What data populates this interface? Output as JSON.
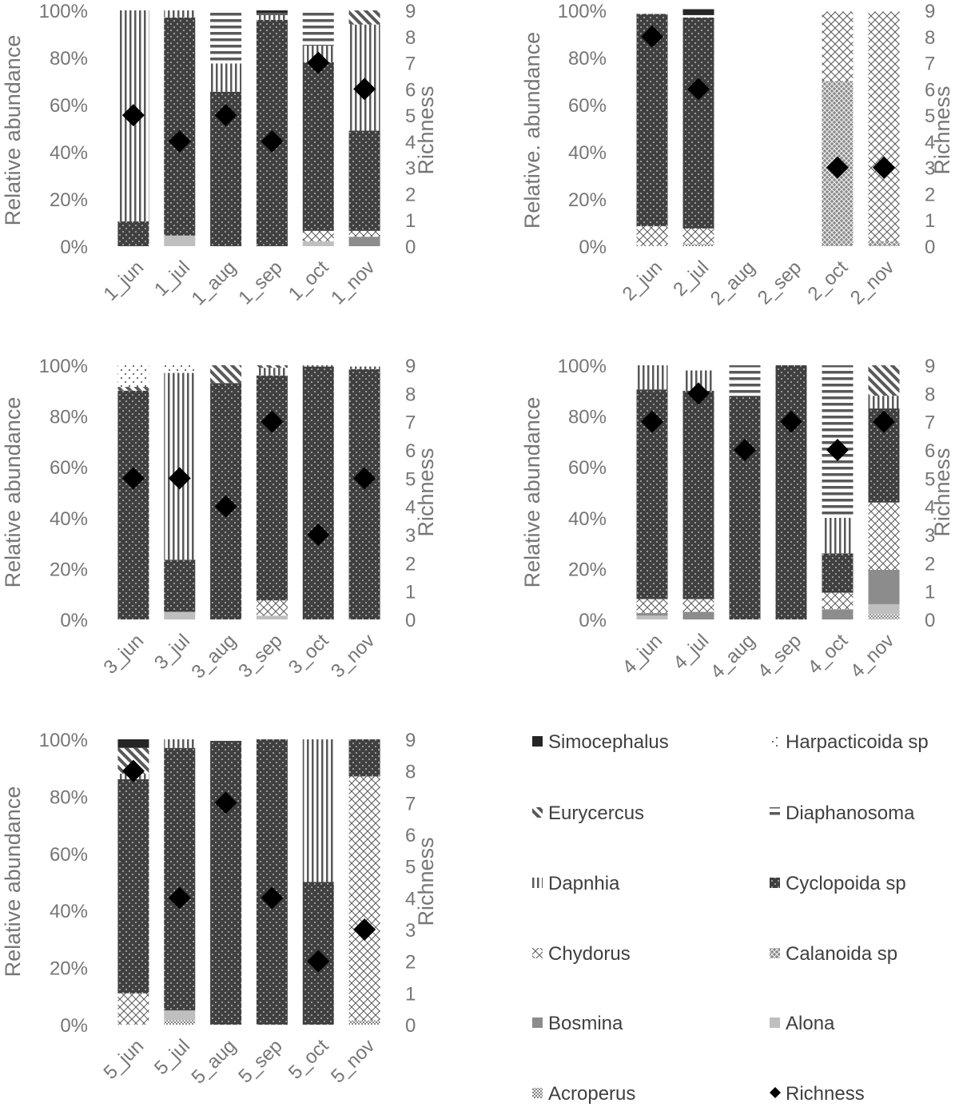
{
  "species": [
    "Acroperus",
    "Alona",
    "Bosmina",
    "Calanoida sp",
    "Chydorus",
    "Cyclopoida sp",
    "Dapnhia",
    "Diaphanosoma",
    "Eurycercus",
    "Harpacticoida sp",
    "Simocephalus"
  ],
  "colors": {
    "axis_text": "#767676",
    "dark": "#3f3f3f",
    "darkest": "#262626",
    "bosmina": "#8c8c8c",
    "alona": "#bfbfbf",
    "pattern_line": "#595959"
  },
  "chart_data": [
    {
      "type": "bar",
      "stacked": true,
      "categories": [
        "1_jun",
        "1_jul",
        "1_aug",
        "1_sep",
        "1_oct",
        "1_nov"
      ],
      "ylabel": "Relative abundance",
      "y2label": "Richness",
      "yticks": [
        "0%",
        "20%",
        "40%",
        "60%",
        "80%",
        "100%"
      ],
      "y2ticks": [
        "0",
        "1",
        "2",
        "3",
        "4",
        "5",
        "6",
        "7",
        "8",
        "9"
      ],
      "ylim": [
        0,
        100
      ],
      "y2lim": [
        0,
        9
      ],
      "series": [
        {
          "name": "Acroperus",
          "values": [
            0,
            0,
            0,
            0,
            0,
            0
          ]
        },
        {
          "name": "Alona",
          "values": [
            0,
            4.5,
            0,
            0,
            2,
            0
          ]
        },
        {
          "name": "Bosmina",
          "values": [
            0,
            0,
            0,
            0,
            0,
            4
          ]
        },
        {
          "name": "Calanoida sp",
          "values": [
            0,
            0,
            0,
            0,
            0,
            0
          ]
        },
        {
          "name": "Chydorus",
          "values": [
            0,
            0,
            0,
            0,
            4.5,
            2.5
          ]
        },
        {
          "name": "Cyclopoida sp",
          "values": [
            10.5,
            92.5,
            65.5,
            96,
            71.5,
            42.5
          ]
        },
        {
          "name": "Dapnhia",
          "values": [
            89.5,
            3,
            12,
            2,
            7,
            45
          ]
        },
        {
          "name": "Diaphanosoma",
          "values": [
            0,
            0,
            22.5,
            1,
            15,
            0
          ]
        },
        {
          "name": "Eurycercus",
          "values": [
            0,
            0,
            0,
            0,
            0,
            6
          ]
        },
        {
          "name": "Harpacticoida sp",
          "values": [
            0,
            0,
            0,
            0,
            0,
            0
          ]
        },
        {
          "name": "Simocephalus",
          "values": [
            0,
            0,
            0,
            1,
            0,
            0
          ]
        }
      ],
      "richness": [
        5,
        4,
        5,
        4,
        7,
        6
      ]
    },
    {
      "type": "bar",
      "stacked": true,
      "categories": [
        "2_jun",
        "2_jul",
        "2_aug",
        "2_sep",
        "2_oct",
        "2_nov"
      ],
      "ylabel": "Relative. abundance",
      "y2label": "Richness",
      "yticks": [
        "0%",
        "20%",
        "40%",
        "60%",
        "80%",
        "100%"
      ],
      "y2ticks": [
        "0",
        "1",
        "2",
        "3",
        "4",
        "5",
        "6",
        "7",
        "8",
        "9"
      ],
      "ylim": [
        0,
        100
      ],
      "y2lim": [
        0,
        9
      ],
      "series": [
        {
          "name": "Acroperus",
          "values": [
            0,
            1,
            0,
            0,
            0,
            0
          ]
        },
        {
          "name": "Alona",
          "values": [
            0,
            0,
            0,
            0,
            0,
            0
          ]
        },
        {
          "name": "Bosmina",
          "values": [
            0,
            0,
            0,
            0,
            0,
            0
          ]
        },
        {
          "name": "Calanoida sp",
          "values": [
            0,
            0,
            0,
            0,
            70,
            2
          ]
        },
        {
          "name": "Chydorus",
          "values": [
            8.5,
            6.5,
            0,
            0,
            29.5,
            97.5
          ]
        },
        {
          "name": "Cyclopoida sp",
          "values": [
            90,
            89.5,
            0,
            0,
            0,
            0
          ]
        },
        {
          "name": "Dapnhia",
          "values": [
            0,
            0,
            0,
            0,
            0,
            0
          ]
        },
        {
          "name": "Diaphanosoma",
          "values": [
            0,
            0,
            0,
            0,
            0,
            0
          ]
        },
        {
          "name": "Eurycercus",
          "values": [
            0,
            0,
            0,
            0,
            0,
            0
          ]
        },
        {
          "name": "Harpacticoida sp",
          "values": [
            1,
            1,
            0,
            0,
            0,
            0
          ]
        },
        {
          "name": "Simocephalus",
          "values": [
            0,
            2.5,
            0,
            0,
            0,
            0
          ]
        }
      ],
      "richness": [
        8,
        6,
        null,
        null,
        3,
        3
      ]
    },
    {
      "type": "bar",
      "stacked": true,
      "categories": [
        "3_jun",
        "3_jul",
        "3_aug",
        "3_sep",
        "3_oct",
        "3_nov"
      ],
      "ylabel": "Relative abundance",
      "y2label": "Richness",
      "yticks": [
        "0%",
        "20%",
        "40%",
        "60%",
        "80%",
        "100%"
      ],
      "y2ticks": [
        "0",
        "1",
        "2",
        "3",
        "4",
        "5",
        "6",
        "7",
        "8",
        "9"
      ],
      "ylim": [
        0,
        100
      ],
      "y2lim": [
        0,
        9
      ],
      "series": [
        {
          "name": "Acroperus",
          "values": [
            0,
            0,
            0,
            0,
            0,
            0
          ]
        },
        {
          "name": "Alona",
          "values": [
            0,
            3,
            0,
            1.5,
            0,
            0
          ]
        },
        {
          "name": "Bosmina",
          "values": [
            0,
            0,
            0,
            0,
            0,
            0
          ]
        },
        {
          "name": "Calanoida sp",
          "values": [
            0,
            0,
            0,
            0,
            0,
            0
          ]
        },
        {
          "name": "Chydorus",
          "values": [
            0,
            0,
            0,
            6,
            0,
            0
          ]
        },
        {
          "name": "Cyclopoida sp",
          "values": [
            90,
            20.5,
            93,
            88.5,
            99.5,
            98.5
          ]
        },
        {
          "name": "Dapnhia",
          "values": [
            0,
            73.5,
            0,
            3,
            0.5,
            1
          ]
        },
        {
          "name": "Diaphanosoma",
          "values": [
            0,
            0,
            0,
            0,
            0,
            0
          ]
        },
        {
          "name": "Eurycercus",
          "values": [
            1.5,
            0,
            7,
            1,
            0,
            0
          ]
        },
        {
          "name": "Harpacticoida sp",
          "values": [
            8.5,
            3,
            0,
            0,
            0,
            0
          ]
        },
        {
          "name": "Simocephalus",
          "values": [
            0,
            0,
            0,
            0,
            0,
            0
          ]
        }
      ],
      "richness": [
        5,
        5,
        4,
        7,
        3,
        5
      ]
    },
    {
      "type": "bar",
      "stacked": true,
      "categories": [
        "4_jun",
        "4_jul",
        "4_aug",
        "4_sep",
        "4_oct",
        "4_nov"
      ],
      "ylabel": "Relative abundance",
      "y2label": "Richness",
      "yticks": [
        "0%",
        "20%",
        "40%",
        "60%",
        "80%",
        "100%"
      ],
      "y2ticks": [
        "0",
        "1",
        "2",
        "3",
        "4",
        "5",
        "6",
        "7",
        "8",
        "9"
      ],
      "ylim": [
        0,
        100
      ],
      "y2lim": [
        0,
        9
      ],
      "series": [
        {
          "name": "Acroperus",
          "values": [
            0,
            0,
            0,
            0,
            0,
            2
          ]
        },
        {
          "name": "Alona",
          "values": [
            1.5,
            0,
            0,
            0,
            0,
            4
          ]
        },
        {
          "name": "Bosmina",
          "values": [
            1,
            3,
            0,
            0,
            4,
            13.5
          ]
        },
        {
          "name": "Calanoida sp",
          "values": [
            0,
            0,
            0,
            0,
            0,
            0
          ]
        },
        {
          "name": "Chydorus",
          "values": [
            5.5,
            5,
            0,
            0,
            6.5,
            26.5
          ]
        },
        {
          "name": "Cyclopoida sp",
          "values": [
            82.5,
            82,
            88,
            100,
            15.5,
            37
          ]
        },
        {
          "name": "Dapnhia",
          "values": [
            9.5,
            8,
            0,
            0,
            14,
            5
          ]
        },
        {
          "name": "Diaphanosoma",
          "values": [
            0,
            1,
            12,
            0,
            60,
            0
          ]
        },
        {
          "name": "Eurycercus",
          "values": [
            0,
            0,
            0,
            0,
            0,
            12
          ]
        },
        {
          "name": "Harpacticoida sp",
          "values": [
            0,
            0,
            0,
            0,
            0,
            0
          ]
        },
        {
          "name": "Simocephalus",
          "values": [
            0,
            0,
            0,
            0,
            0,
            0
          ]
        }
      ],
      "richness": [
        7,
        8,
        6,
        7,
        6,
        7
      ]
    },
    {
      "type": "bar",
      "stacked": true,
      "categories": [
        "5_jun",
        "5_jul",
        "5_aug",
        "5_sep",
        "5_oct",
        "5_nov"
      ],
      "ylabel": "Relative abundance",
      "y2label": "Richness",
      "yticks": [
        "0%",
        "20%",
        "40%",
        "60%",
        "80%",
        "100%"
      ],
      "y2ticks": [
        "0",
        "1",
        "2",
        "3",
        "4",
        "5",
        "6",
        "7",
        "8",
        "9"
      ],
      "ylim": [
        0,
        100
      ],
      "y2lim": [
        0,
        9
      ],
      "series": [
        {
          "name": "Acroperus",
          "values": [
            0,
            1.5,
            0,
            0,
            0,
            1.5
          ]
        },
        {
          "name": "Alona",
          "values": [
            0,
            3.5,
            0,
            0,
            0,
            0
          ]
        },
        {
          "name": "Bosmina",
          "values": [
            0,
            0,
            0,
            0,
            0,
            0
          ]
        },
        {
          "name": "Calanoida sp",
          "values": [
            0,
            0,
            0,
            0,
            0,
            0
          ]
        },
        {
          "name": "Chydorus",
          "values": [
            11,
            0,
            0,
            0,
            0,
            85.5
          ]
        },
        {
          "name": "Cyclopoida sp",
          "values": [
            75,
            92,
            99.5,
            100,
            50,
            13
          ]
        },
        {
          "name": "Dapnhia",
          "values": [
            2,
            3,
            0,
            0,
            50,
            0
          ]
        },
        {
          "name": "Diaphanosoma",
          "values": [
            0,
            0,
            0.5,
            0,
            0,
            0
          ]
        },
        {
          "name": "Eurycercus",
          "values": [
            9,
            0,
            0,
            0,
            0,
            0
          ]
        },
        {
          "name": "Harpacticoida sp",
          "values": [
            0,
            0,
            0,
            0,
            0,
            0
          ]
        },
        {
          "name": "Simocephalus",
          "values": [
            3,
            0,
            0,
            0,
            0,
            0
          ]
        }
      ],
      "richness": [
        8,
        4,
        7,
        4,
        2,
        3
      ]
    }
  ],
  "legend": {
    "items": [
      {
        "label": "Simocephalus",
        "key": "Simocephalus"
      },
      {
        "label": "Harpacticoida sp",
        "key": "Harpacticoida sp"
      },
      {
        "label": "Eurycercus",
        "key": "Eurycercus"
      },
      {
        "label": "Diaphanosoma",
        "key": "Diaphanosoma"
      },
      {
        "label": "Dapnhia",
        "key": "Dapnhia"
      },
      {
        "label": "Cyclopoida sp",
        "key": "Cyclopoida sp"
      },
      {
        "label": "Chydorus",
        "key": "Chydorus"
      },
      {
        "label": "Calanoida sp",
        "key": "Calanoida sp"
      },
      {
        "label": "Bosmina",
        "key": "Bosmina"
      },
      {
        "label": "Alona",
        "key": "Alona"
      },
      {
        "label": "Acroperus",
        "key": "Acroperus"
      },
      {
        "label": "Richness",
        "key": "Richness"
      }
    ]
  }
}
